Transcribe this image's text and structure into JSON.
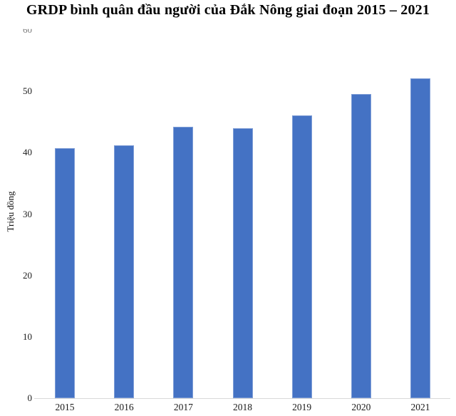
{
  "chart_data": {
    "type": "bar",
    "title": "GRDP bình quân đầu người của Đắk Nông giai đoạn 2015 – 2021",
    "categories": [
      "2015",
      "2016",
      "2017",
      "2018",
      "2019",
      "2020",
      "2021"
    ],
    "values": [
      40.7,
      41.2,
      44.2,
      44.0,
      46.1,
      49.6,
      52.1
    ],
    "series_name": "GRDP bình quân đầu người",
    "xlabel": "",
    "ylabel": "Triệu đồng",
    "ylim": [
      0,
      60
    ],
    "yticks": [
      0,
      10,
      20,
      30,
      40,
      50,
      60
    ],
    "grid": false,
    "legend_position": "none",
    "colors": {
      "bar_fill": "#4472C4",
      "bar_edge": "#7E9DD6",
      "axis_line": "#D9D9D9",
      "text": "#1A1A1A",
      "title_text": "#000000",
      "background": "#FFFFFF"
    }
  }
}
